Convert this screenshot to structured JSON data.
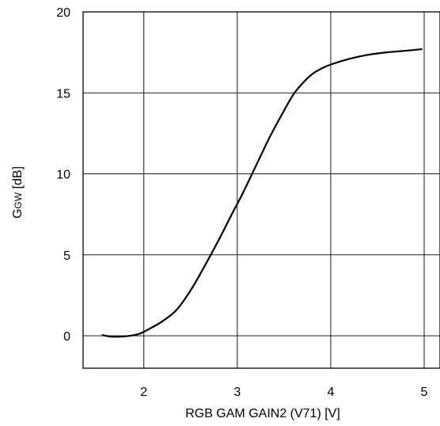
{
  "chart_data": {
    "type": "line",
    "title": "",
    "xlabel": "RGB GAM GAIN2 (V71) [V]",
    "ylabel": {
      "main": "G",
      "subscript": "GW",
      "unit": " [dB]"
    },
    "xlim": [
      1.35,
      5.0
    ],
    "ylim": [
      -2,
      20
    ],
    "xticks": [
      2,
      3,
      4,
      5
    ],
    "yticks": [
      0,
      5,
      10,
      15,
      20
    ],
    "grid": true,
    "series": [
      {
        "x": [
          1.55,
          1.65,
          1.75,
          1.85,
          1.95,
          2.05,
          2.2,
          2.35,
          2.5,
          2.65,
          2.8,
          2.95,
          3.05,
          3.2,
          3.35,
          3.5,
          3.6,
          3.7,
          3.8,
          3.9,
          4.0,
          4.2,
          4.4,
          4.6,
          4.8,
          4.98
        ],
        "y": [
          0.05,
          -0.05,
          -0.05,
          0.0,
          0.12,
          0.4,
          0.9,
          1.6,
          2.8,
          4.3,
          5.9,
          7.6,
          8.7,
          10.5,
          12.3,
          13.9,
          14.9,
          15.6,
          16.15,
          16.5,
          16.75,
          17.1,
          17.35,
          17.5,
          17.6,
          17.7
        ]
      }
    ]
  }
}
